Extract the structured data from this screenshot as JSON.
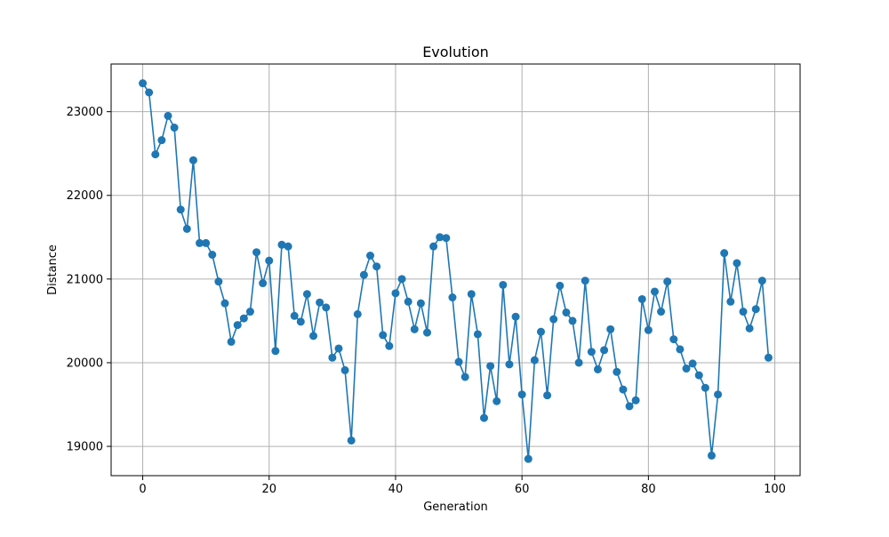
{
  "chart_data": {
    "type": "line",
    "title": "Evolution",
    "xlabel": "Generation",
    "ylabel": "Distance",
    "xlim": [
      -5,
      104
    ],
    "ylim": [
      18650,
      23570
    ],
    "xticks": [
      0,
      20,
      40,
      60,
      80,
      100
    ],
    "yticks": [
      19000,
      20000,
      21000,
      22000,
      23000
    ],
    "grid": true,
    "marker": "circle",
    "colors": {
      "line": "#1f77b4",
      "grid": "#b0b0b0",
      "axes": "#000000"
    },
    "series": [
      {
        "x": [
          0,
          1,
          2,
          3,
          4,
          5,
          6,
          7,
          8,
          9,
          10,
          11,
          12,
          13,
          14,
          15,
          16,
          17,
          18,
          19,
          20,
          21,
          22,
          23,
          24,
          25,
          26,
          27,
          28,
          29,
          30,
          31,
          32,
          33,
          34,
          35,
          36,
          37,
          38,
          39,
          40,
          41,
          42,
          43,
          44,
          45,
          46,
          47,
          48,
          49,
          50,
          51,
          52,
          53,
          54,
          55,
          56,
          57,
          58,
          59,
          60,
          61,
          62,
          63,
          64,
          65,
          66,
          67,
          68,
          69,
          70,
          71,
          72,
          73,
          74,
          75,
          76,
          77,
          78,
          79,
          80,
          81,
          82,
          83,
          84,
          85,
          86,
          87,
          88,
          89,
          90,
          91,
          92,
          93,
          94,
          95,
          96,
          97,
          98,
          99
        ],
        "y": [
          23340,
          23230,
          22490,
          22660,
          22950,
          22810,
          21830,
          21600,
          22420,
          21430,
          21430,
          21290,
          20970,
          20710,
          20250,
          20450,
          20530,
          20610,
          21320,
          20950,
          21220,
          20140,
          21410,
          21390,
          20560,
          20490,
          20820,
          20320,
          20720,
          20660,
          20060,
          20170,
          19910,
          19070,
          20580,
          21050,
          21280,
          21150,
          20330,
          20200,
          20830,
          21000,
          20730,
          20400,
          20710,
          20360,
          21390,
          21500,
          21490,
          20780,
          20010,
          19830,
          20820,
          20340,
          19340,
          19960,
          19540,
          20930,
          19980,
          20550,
          19620,
          18850,
          20030,
          20370,
          19610,
          20520,
          20920,
          20600,
          20500,
          20000,
          20980,
          20130,
          19920,
          20150,
          20400,
          19890,
          19680,
          19480,
          19550,
          20760,
          20390,
          20850,
          20610,
          20970,
          20280,
          20160,
          19930,
          19990,
          19850,
          19700,
          18890,
          19620,
          21310,
          20730,
          21190,
          20610,
          20410,
          20640,
          20980,
          20060
        ]
      }
    ]
  }
}
